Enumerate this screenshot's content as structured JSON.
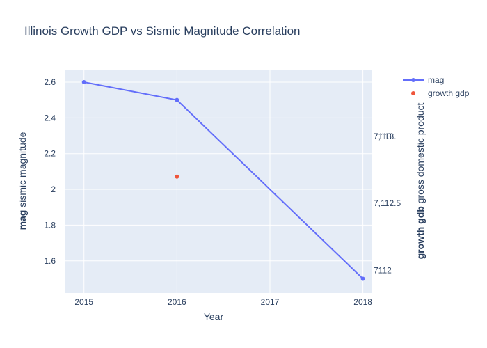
{
  "chart_data": {
    "type": "line",
    "title": "Illinois Growth GDP vs Sismic Magnitude Correlation",
    "xlabel": "Year",
    "ylabel_bold": "mag",
    "ylabel_rest": " sismic magnitude",
    "y2label_bold": "growth gdb",
    "y2label_rest": " gross domestic product",
    "x_ticks": [
      "2015",
      "2016",
      "2017",
      "2018"
    ],
    "y_ticks": [
      "1.6",
      "1.8",
      "2",
      "2.2",
      "2.4",
      "2.6"
    ],
    "y2_ticks": [
      "7112",
      "7,112.5",
      "7113",
      "7,113."
    ],
    "xlim": [
      2014.8,
      2018.1
    ],
    "ylim": [
      1.42,
      2.67
    ],
    "y2lim": [
      7111.83,
      7113.5
    ],
    "grid": true,
    "legend_position": "top-right",
    "series": [
      {
        "name": "mag",
        "axis": "y",
        "mode": "lines+markers",
        "color": "#636efa",
        "x": [
          2015,
          2016,
          2018
        ],
        "values": [
          2.6,
          2.5,
          1.5
        ]
      },
      {
        "name": "growth gdp",
        "axis": "y2",
        "mode": "markers",
        "color": "#ef553b",
        "x": [
          2016
        ],
        "values": [
          7112.7
        ]
      }
    ]
  }
}
